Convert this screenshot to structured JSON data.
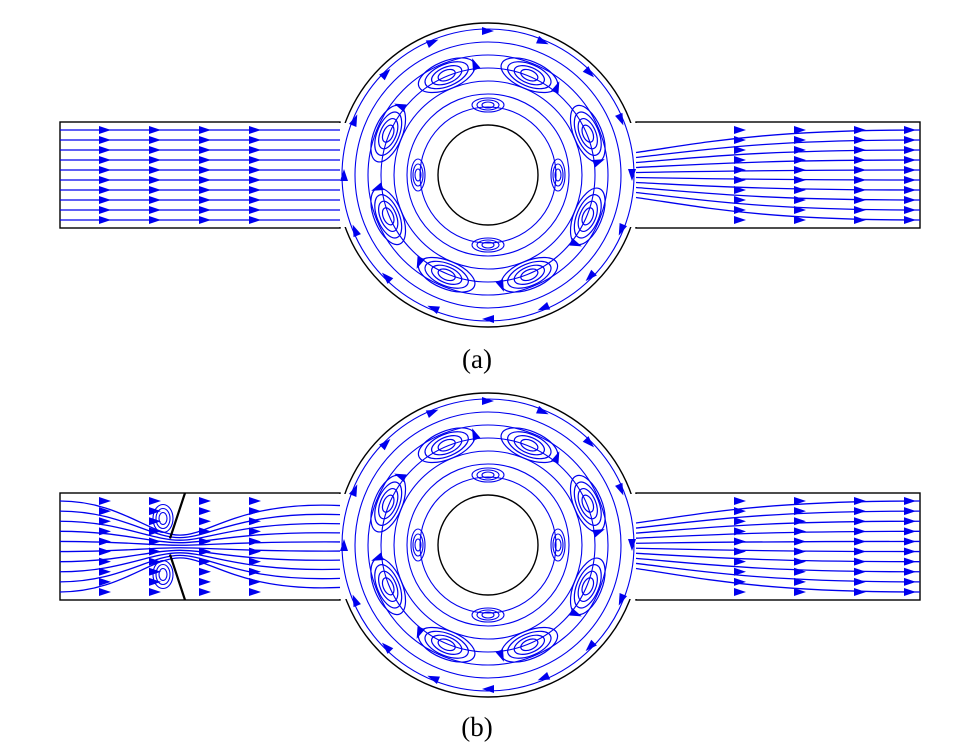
{
  "panels": [
    {
      "id": "a",
      "caption": "(a)",
      "obstacle": false
    },
    {
      "id": "b",
      "caption": "(b)",
      "obstacle": true
    }
  ],
  "colors": {
    "streamline": "#0000ee",
    "wall": "#000000",
    "background": "#ffffff"
  }
}
